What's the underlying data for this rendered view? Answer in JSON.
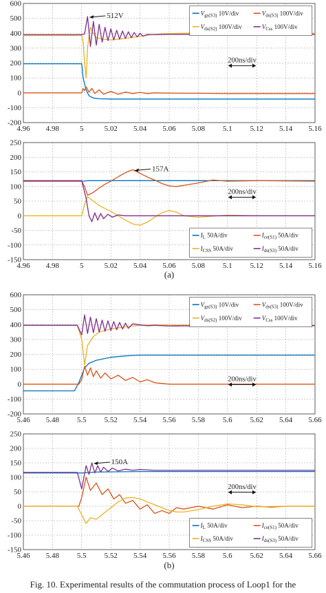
{
  "caption": "Fig. 10. Experimental results of the commutation process of Loop1 for the",
  "chart_data": [
    {
      "id": "a1",
      "type": "line",
      "panel_label": "",
      "xlim": [
        4.96,
        5.16
      ],
      "ylim": [
        -200,
        600
      ],
      "xticks": [
        "4.96",
        "4.98",
        "5",
        "5.02",
        "5.04",
        "5.06",
        "5.08",
        "5.1",
        "5.12",
        "5.14",
        "5.16"
      ],
      "yticks": [
        "-200",
        "-100",
        "0",
        "100",
        "200",
        "300",
        "400",
        "500",
        "600"
      ],
      "grid": true,
      "legend_position": "top-right",
      "legend": [
        {
          "label": "V_gs(S3)  10V/div",
          "color": "#0072bd"
        },
        {
          "label": "V_ds(S3) 100V/div",
          "color": "#d95319"
        },
        {
          "label": "V_ds(S2) 100V/div",
          "color": "#edb120"
        },
        {
          "label": "V_Css     100V/div",
          "color": "#7e2f8e"
        }
      ],
      "annotations": [
        {
          "text": "512V",
          "x": 5.004,
          "y": 512
        },
        {
          "text": "200ns/div",
          "x": 5.11,
          "y": 205
        }
      ],
      "series": [
        {
          "name": "V_gs(S3)",
          "color": "#0072bd",
          "x": [
            4.96,
            5.0,
            5.001,
            5.002,
            5.003,
            5.005,
            5.008,
            5.012,
            5.02,
            5.04,
            5.06,
            5.16
          ],
          "y": [
            195,
            195,
            100,
            60,
            20,
            -20,
            -35,
            -40,
            -42,
            -42,
            -42,
            -42
          ]
        },
        {
          "name": "V_ds(S3)",
          "color": "#d95319",
          "x": [
            4.96,
            5.0,
            5.001,
            5.002,
            5.003,
            5.005,
            5.007,
            5.009,
            5.012,
            5.015,
            5.02,
            5.025,
            5.03,
            5.035,
            5.04,
            5.045,
            5.05,
            5.06,
            5.07,
            5.08,
            5.09,
            5.1,
            5.16
          ],
          "y": [
            0,
            0,
            30,
            15,
            40,
            5,
            30,
            -5,
            20,
            -10,
            10,
            -10,
            5,
            -5,
            3,
            -5,
            0,
            -2,
            -3,
            -3,
            -4,
            -5,
            -5
          ]
        },
        {
          "name": "V_ds(S2)",
          "color": "#edb120",
          "x": [
            4.96,
            5.0,
            5.001,
            5.002,
            5.003,
            5.004,
            5.005,
            5.006,
            5.008,
            5.01,
            5.015,
            5.02,
            5.03,
            5.04,
            5.05,
            5.06,
            5.07,
            5.08,
            5.1,
            5.12,
            5.16
          ],
          "y": [
            385,
            385,
            340,
            200,
            100,
            300,
            380,
            440,
            400,
            370,
            360,
            355,
            365,
            380,
            392,
            398,
            400,
            402,
            401,
            400,
            400
          ]
        },
        {
          "name": "V_Css",
          "color": "#7e2f8e",
          "x": [
            4.96,
            5.0,
            5.002,
            5.004,
            5.006,
            5.008,
            5.01,
            5.012,
            5.014,
            5.016,
            5.018,
            5.02,
            5.022,
            5.024,
            5.026,
            5.028,
            5.03,
            5.032,
            5.034,
            5.036,
            5.038,
            5.04,
            5.042,
            5.045,
            5.05,
            5.06,
            5.08,
            5.1,
            5.16
          ],
          "y": [
            390,
            390,
            395,
            512,
            310,
            480,
            320,
            460,
            340,
            440,
            350,
            430,
            355,
            420,
            360,
            415,
            365,
            410,
            370,
            405,
            375,
            400,
            380,
            392,
            390,
            392,
            393,
            393,
            393
          ]
        }
      ]
    },
    {
      "id": "a2",
      "type": "line",
      "panel_label": "(a)",
      "xlim": [
        4.96,
        5.16
      ],
      "ylim": [
        -150,
        250
      ],
      "xticks": [
        "4.96",
        "4.98",
        "5",
        "5.02",
        "5.04",
        "5.06",
        "5.08",
        "5.1",
        "5.12",
        "5.14",
        "5.16"
      ],
      "yticks": [
        "-150",
        "-100",
        "-50",
        "0",
        "50",
        "100",
        "150",
        "200",
        "250"
      ],
      "grid": true,
      "legend_position": "bottom-right",
      "legend": [
        {
          "label": "I_L      50A/div",
          "color": "#0072bd"
        },
        {
          "label": "I_ce(S1) 50A/div",
          "color": "#d95319"
        },
        {
          "label": "I_CSS   50A/div",
          "color": "#edb120"
        },
        {
          "label": "I_ds(S3) 50A/div",
          "color": "#7e2f8e"
        }
      ],
      "annotations": [
        {
          "text": "157A",
          "x": 5.035,
          "y": 157
        },
        {
          "text": "200ns/div",
          "x": 5.11,
          "y": 75
        }
      ],
      "series": [
        {
          "name": "I_L",
          "color": "#0072bd",
          "x": [
            4.96,
            5.0,
            5.005,
            5.02,
            5.06,
            5.16
          ],
          "y": [
            118,
            118,
            120,
            120,
            120,
            120
          ]
        },
        {
          "name": "I_ce(S1)",
          "color": "#d95319",
          "x": [
            4.96,
            5.0,
            5.002,
            5.004,
            5.008,
            5.012,
            5.016,
            5.02,
            5.024,
            5.028,
            5.032,
            5.035,
            5.038,
            5.042,
            5.046,
            5.05,
            5.055,
            5.06,
            5.065,
            5.07,
            5.08,
            5.09,
            5.1,
            5.12,
            5.16
          ],
          "y": [
            118,
            118,
            100,
            70,
            80,
            95,
            108,
            118,
            130,
            142,
            152,
            157,
            150,
            140,
            130,
            122,
            110,
            102,
            100,
            104,
            112,
            122,
            118,
            120,
            118
          ]
        },
        {
          "name": "I_CSS",
          "color": "#edb120",
          "x": [
            4.96,
            5.0,
            5.002,
            5.004,
            5.008,
            5.012,
            5.02,
            5.025,
            5.03,
            5.035,
            5.04,
            5.045,
            5.05,
            5.055,
            5.06,
            5.065,
            5.07,
            5.08,
            5.1,
            5.12,
            5.16
          ],
          "y": [
            0,
            0,
            40,
            65,
            50,
            35,
            15,
            0,
            -15,
            -28,
            -32,
            -22,
            -5,
            10,
            18,
            12,
            0,
            -5,
            2,
            0,
            0
          ]
        },
        {
          "name": "I_ds(S3)",
          "color": "#7e2f8e",
          "x": [
            4.96,
            5.0,
            5.003,
            5.005,
            5.007,
            5.009,
            5.011,
            5.013,
            5.015,
            5.018,
            5.021,
            5.025,
            5.03,
            5.04,
            5.16
          ],
          "y": [
            120,
            120,
            60,
            0,
            -20,
            10,
            -15,
            8,
            -10,
            5,
            -5,
            3,
            0,
            0,
            0
          ]
        }
      ]
    },
    {
      "id": "b1",
      "type": "line",
      "panel_label": "",
      "xlim": [
        5.46,
        5.66
      ],
      "ylim": [
        -200,
        600
      ],
      "xticks": [
        "5.46",
        "5.48",
        "5.5",
        "5.52",
        "5.54",
        "5.56",
        "5.58",
        "5.6",
        "5.62",
        "5.64",
        "5.66"
      ],
      "yticks": [
        "-200",
        "-100",
        "0",
        "100",
        "200",
        "300",
        "400",
        "500",
        "600"
      ],
      "grid": true,
      "legend_position": "top-right",
      "legend": [
        {
          "label": "V_gs(S3)  10V/div",
          "color": "#0072bd"
        },
        {
          "label": "V_ds(S3) 100V/div",
          "color": "#d95319"
        },
        {
          "label": "V_ds(S2) 100V/div",
          "color": "#edb120"
        },
        {
          "label": "V_Css     100V/div",
          "color": "#7e2f8e"
        }
      ],
      "annotations": [
        {
          "text": "200ns/div",
          "x": 5.61,
          "y": 20
        }
      ],
      "series": [
        {
          "name": "V_gs(S3)",
          "color": "#0072bd",
          "x": [
            5.46,
            5.495,
            5.498,
            5.5,
            5.502,
            5.505,
            5.51,
            5.52,
            5.53,
            5.54,
            5.56,
            5.66
          ],
          "y": [
            -45,
            -45,
            10,
            60,
            110,
            140,
            160,
            180,
            190,
            195,
            195,
            195
          ]
        },
        {
          "name": "V_ds(S3)",
          "color": "#d95319",
          "x": [
            5.46,
            5.498,
            5.5,
            5.502,
            5.504,
            5.506,
            5.508,
            5.51,
            5.513,
            5.516,
            5.52,
            5.525,
            5.53,
            5.535,
            5.54,
            5.545,
            5.55,
            5.56,
            5.66
          ],
          "y": [
            0,
            0,
            30,
            120,
            60,
            110,
            50,
            90,
            40,
            75,
            35,
            60,
            25,
            45,
            15,
            30,
            10,
            0,
            0
          ]
        },
        {
          "name": "V_ds(S2)",
          "color": "#edb120",
          "x": [
            5.46,
            5.497,
            5.5,
            5.502,
            5.504,
            5.508,
            5.512,
            5.52,
            5.53,
            5.54,
            5.55,
            5.56,
            5.58,
            5.6,
            5.66
          ],
          "y": [
            395,
            395,
            300,
            130,
            260,
            320,
            350,
            370,
            385,
            395,
            398,
            397,
            395,
            395,
            395
          ]
        },
        {
          "name": "V_Css",
          "color": "#7e2f8e",
          "x": [
            5.46,
            5.497,
            5.5,
            5.502,
            5.504,
            5.506,
            5.508,
            5.51,
            5.512,
            5.514,
            5.516,
            5.518,
            5.52,
            5.522,
            5.524,
            5.526,
            5.528,
            5.53,
            5.532,
            5.535,
            5.54,
            5.545,
            5.55,
            5.56,
            5.58,
            5.6,
            5.66
          ],
          "y": [
            395,
            395,
            330,
            465,
            340,
            450,
            345,
            440,
            350,
            430,
            355,
            425,
            360,
            420,
            365,
            415,
            370,
            410,
            375,
            405,
            398,
            392,
            395,
            390,
            392,
            393,
            393
          ]
        }
      ]
    },
    {
      "id": "b2",
      "type": "line",
      "panel_label": "(b)",
      "xlim": [
        5.46,
        5.66
      ],
      "ylim": [
        -150,
        250
      ],
      "xticks": [
        "5.46",
        "5.48",
        "5.5",
        "5.52",
        "5.54",
        "5.56",
        "5.58",
        "5.6",
        "5.62",
        "5.64",
        "5.66"
      ],
      "yticks": [
        "-150",
        "-100",
        "-50",
        "0",
        "50",
        "100",
        "150",
        "200",
        "250"
      ],
      "grid": true,
      "legend_position": "bottom-right",
      "legend": [
        {
          "label": "I_L      50A/div",
          "color": "#0072bd"
        },
        {
          "label": "I_ce(S1) 50A/div",
          "color": "#d95319"
        },
        {
          "label": "I_CSS   50A/div",
          "color": "#edb120"
        },
        {
          "label": "I_ds(S3) 50A/div",
          "color": "#7e2f8e"
        }
      ],
      "annotations": [
        {
          "text": "150A",
          "x": 5.507,
          "y": 150
        },
        {
          "text": "200ns/div",
          "x": 5.61,
          "y": 60
        }
      ],
      "series": [
        {
          "name": "I_L",
          "color": "#0072bd",
          "x": [
            5.46,
            5.5,
            5.51,
            5.54,
            5.66
          ],
          "y": [
            115,
            115,
            118,
            120,
            120
          ]
        },
        {
          "name": "I_ce(S1)",
          "color": "#d95319",
          "x": [
            5.46,
            5.498,
            5.5,
            5.503,
            5.506,
            5.51,
            5.514,
            5.518,
            5.522,
            5.526,
            5.53,
            5.535,
            5.54,
            5.545,
            5.55,
            5.555,
            5.56,
            5.565,
            5.57,
            5.58,
            5.59,
            5.6,
            5.61,
            5.62,
            5.63,
            5.64,
            5.66
          ],
          "y": [
            0,
            0,
            30,
            100,
            55,
            80,
            40,
            60,
            25,
            40,
            10,
            20,
            -10,
            5,
            -25,
            -15,
            -25,
            -5,
            -10,
            0,
            -10,
            5,
            -5,
            0,
            -3,
            0,
            0
          ]
        },
        {
          "name": "I_CSS",
          "color": "#edb120",
          "x": [
            5.46,
            5.497,
            5.5,
            5.503,
            5.506,
            5.51,
            5.515,
            5.52,
            5.525,
            5.53,
            5.535,
            5.54,
            5.545,
            5.55,
            5.555,
            5.56,
            5.565,
            5.57,
            5.58,
            5.59,
            5.6,
            5.61,
            5.62,
            5.64,
            5.66
          ],
          "y": [
            0,
            0,
            -30,
            -60,
            -40,
            -45,
            -25,
            -5,
            15,
            28,
            30,
            25,
            15,
            5,
            -5,
            -15,
            -20,
            -20,
            -12,
            0,
            8,
            5,
            -2,
            0,
            0
          ]
        },
        {
          "name": "I_ds(S3)",
          "color": "#7e2f8e",
          "x": [
            5.46,
            5.497,
            5.5,
            5.503,
            5.505,
            5.507,
            5.509,
            5.511,
            5.513,
            5.515,
            5.518,
            5.521,
            5.525,
            5.53,
            5.535,
            5.54,
            5.55,
            5.6,
            5.66
          ],
          "y": [
            117,
            117,
            60,
            140,
            110,
            150,
            115,
            140,
            118,
            135,
            120,
            132,
            122,
            128,
            124,
            127,
            124,
            124,
            124
          ]
        }
      ]
    }
  ]
}
